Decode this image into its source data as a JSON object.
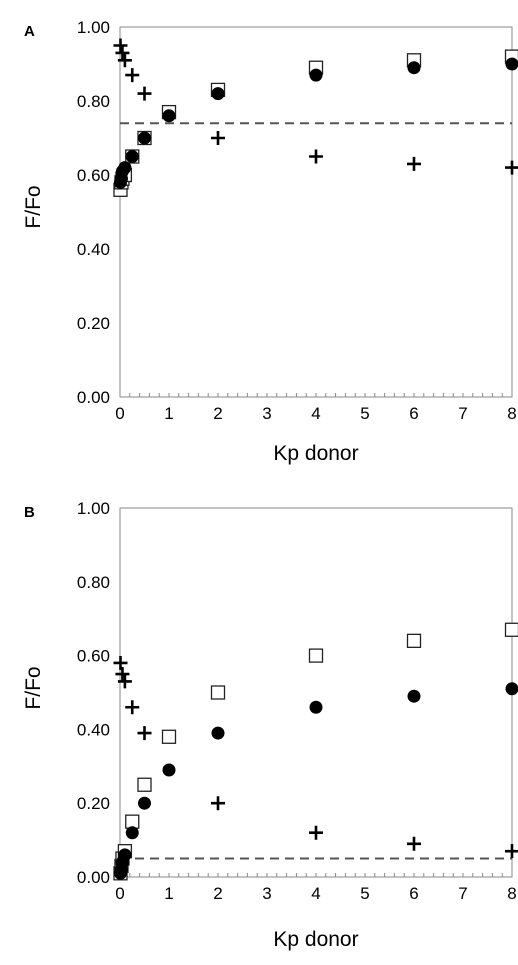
{
  "chart_data": [
    {
      "panel": "A",
      "type": "scatter",
      "title": "",
      "xlabel": "Kp donor",
      "ylabel": "F/Fo",
      "xlim": [
        0,
        8
      ],
      "ylim": [
        0,
        1
      ],
      "x_ticks": [
        "0",
        "1",
        "2",
        "3",
        "4",
        "5",
        "6",
        "7",
        "8"
      ],
      "y_ticks": [
        "0.00",
        "0.20",
        "0.40",
        "0.60",
        "0.80",
        "1.00"
      ],
      "grid": false,
      "legend": "none",
      "reference_line": {
        "y": 0.74,
        "style": "dashed"
      },
      "series": [
        {
          "marker": "open-square",
          "x": [
            0.01,
            0.03,
            0.05,
            0.1,
            0.25,
            0.5,
            1,
            2,
            4,
            6,
            8
          ],
          "y": [
            0.56,
            0.58,
            0.59,
            0.6,
            0.65,
            0.7,
            0.77,
            0.83,
            0.89,
            0.91,
            0.92
          ]
        },
        {
          "marker": "filled-circle",
          "x": [
            0.01,
            0.03,
            0.05,
            0.1,
            0.25,
            0.5,
            1,
            2,
            4,
            6,
            8
          ],
          "y": [
            0.58,
            0.59,
            0.61,
            0.62,
            0.65,
            0.7,
            0.76,
            0.82,
            0.87,
            0.89,
            0.9
          ]
        },
        {
          "marker": "plus",
          "x": [
            0.01,
            0.05,
            0.1,
            0.25,
            0.5,
            2,
            4,
            6,
            8
          ],
          "y": [
            0.95,
            0.93,
            0.91,
            0.87,
            0.82,
            0.7,
            0.65,
            0.63,
            0.62
          ]
        }
      ]
    },
    {
      "panel": "B",
      "type": "scatter",
      "title": "",
      "xlabel": "Kp donor",
      "ylabel": "F/Fo",
      "xlim": [
        0,
        8
      ],
      "ylim": [
        0,
        1
      ],
      "x_ticks": [
        "0",
        "1",
        "2",
        "3",
        "4",
        "5",
        "6",
        "7",
        "8"
      ],
      "y_ticks": [
        "0.00",
        "0.20",
        "0.40",
        "0.60",
        "0.80",
        "1.00"
      ],
      "grid": false,
      "legend": "none",
      "reference_line": {
        "y": 0.05,
        "style": "dashed"
      },
      "series": [
        {
          "marker": "open-square",
          "x": [
            0.01,
            0.03,
            0.05,
            0.1,
            0.25,
            0.5,
            1,
            2,
            4,
            6,
            8
          ],
          "y": [
            0.01,
            0.03,
            0.05,
            0.07,
            0.15,
            0.25,
            0.38,
            0.5,
            0.6,
            0.64,
            0.67
          ]
        },
        {
          "marker": "filled-circle",
          "x": [
            0.01,
            0.03,
            0.05,
            0.1,
            0.25,
            0.5,
            1,
            2,
            4,
            6,
            8
          ],
          "y": [
            0.01,
            0.02,
            0.04,
            0.06,
            0.12,
            0.2,
            0.29,
            0.39,
            0.46,
            0.49,
            0.51
          ]
        },
        {
          "marker": "plus",
          "x": [
            0.01,
            0.05,
            0.1,
            0.25,
            0.5,
            2,
            4,
            6,
            8
          ],
          "y": [
            0.58,
            0.55,
            0.53,
            0.46,
            0.39,
            0.2,
            0.12,
            0.09,
            0.07
          ]
        }
      ]
    }
  ]
}
